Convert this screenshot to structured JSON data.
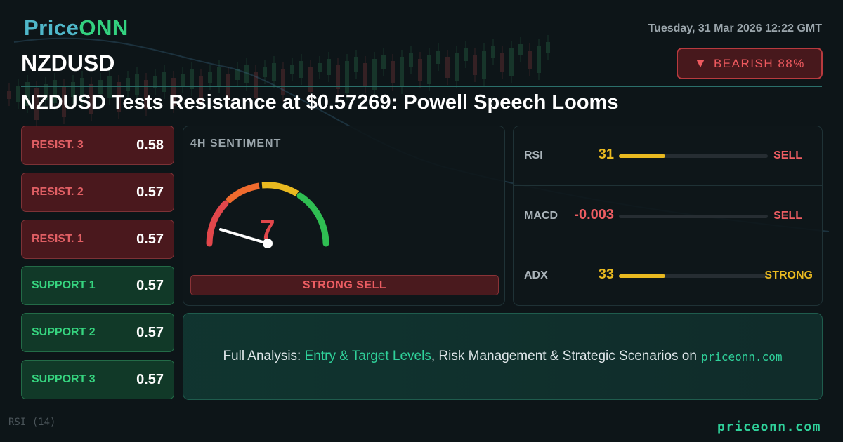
{
  "header": {
    "logo_part1": "Price",
    "logo_part2": "ONN",
    "symbol": "NZDUSD",
    "datetime": "Tuesday, 31 Mar 2026 12:22 GMT",
    "badge_icon": "▼",
    "badge_text": "BEARISH 88%",
    "headline": "NZDUSD Tests Resistance at $0.57269: Powell Speech Looms"
  },
  "levels": [
    {
      "label": "RESIST. 3",
      "value": "0.58"
    },
    {
      "label": "RESIST. 2",
      "value": "0.57"
    },
    {
      "label": "RESIST. 1",
      "value": "0.57"
    },
    {
      "label": "SUPPORT 1",
      "value": "0.57"
    },
    {
      "label": "SUPPORT 2",
      "value": "0.57"
    },
    {
      "label": "SUPPORT 3",
      "value": "0.57"
    }
  ],
  "sentiment": {
    "title": "4H SENTIMENT",
    "value": "7",
    "label": "STRONG SELL"
  },
  "indicators": [
    {
      "name": "RSI",
      "value": "31",
      "level": 0.31,
      "signal": "SELL",
      "value_color": "#e9b920",
      "signal_color": "#ec5d62"
    },
    {
      "name": "MACD",
      "value": "-0.003",
      "level": 0,
      "signal": "SELL",
      "value_color": "#ec5d62",
      "signal_color": "#ec5d62"
    },
    {
      "name": "ADX",
      "value": "33",
      "level": 0.31,
      "signal": "STRONG",
      "value_color": "#e9b920",
      "signal_color": "#e9b920"
    }
  ],
  "cta": {
    "prefix": "Full Analysis: ",
    "highlight": "Entry & Target Levels",
    "middle": ", Risk Management & Strategic Scenarios on",
    "site": "priceonn.com"
  },
  "footer": {
    "rsi_label": "RSI (14)",
    "url": "priceonn.com"
  },
  "colors": {
    "bearish": "#ef5a5f",
    "bullish": "#36d47f",
    "accent": "#2fd19a",
    "warn": "#e9b920"
  }
}
